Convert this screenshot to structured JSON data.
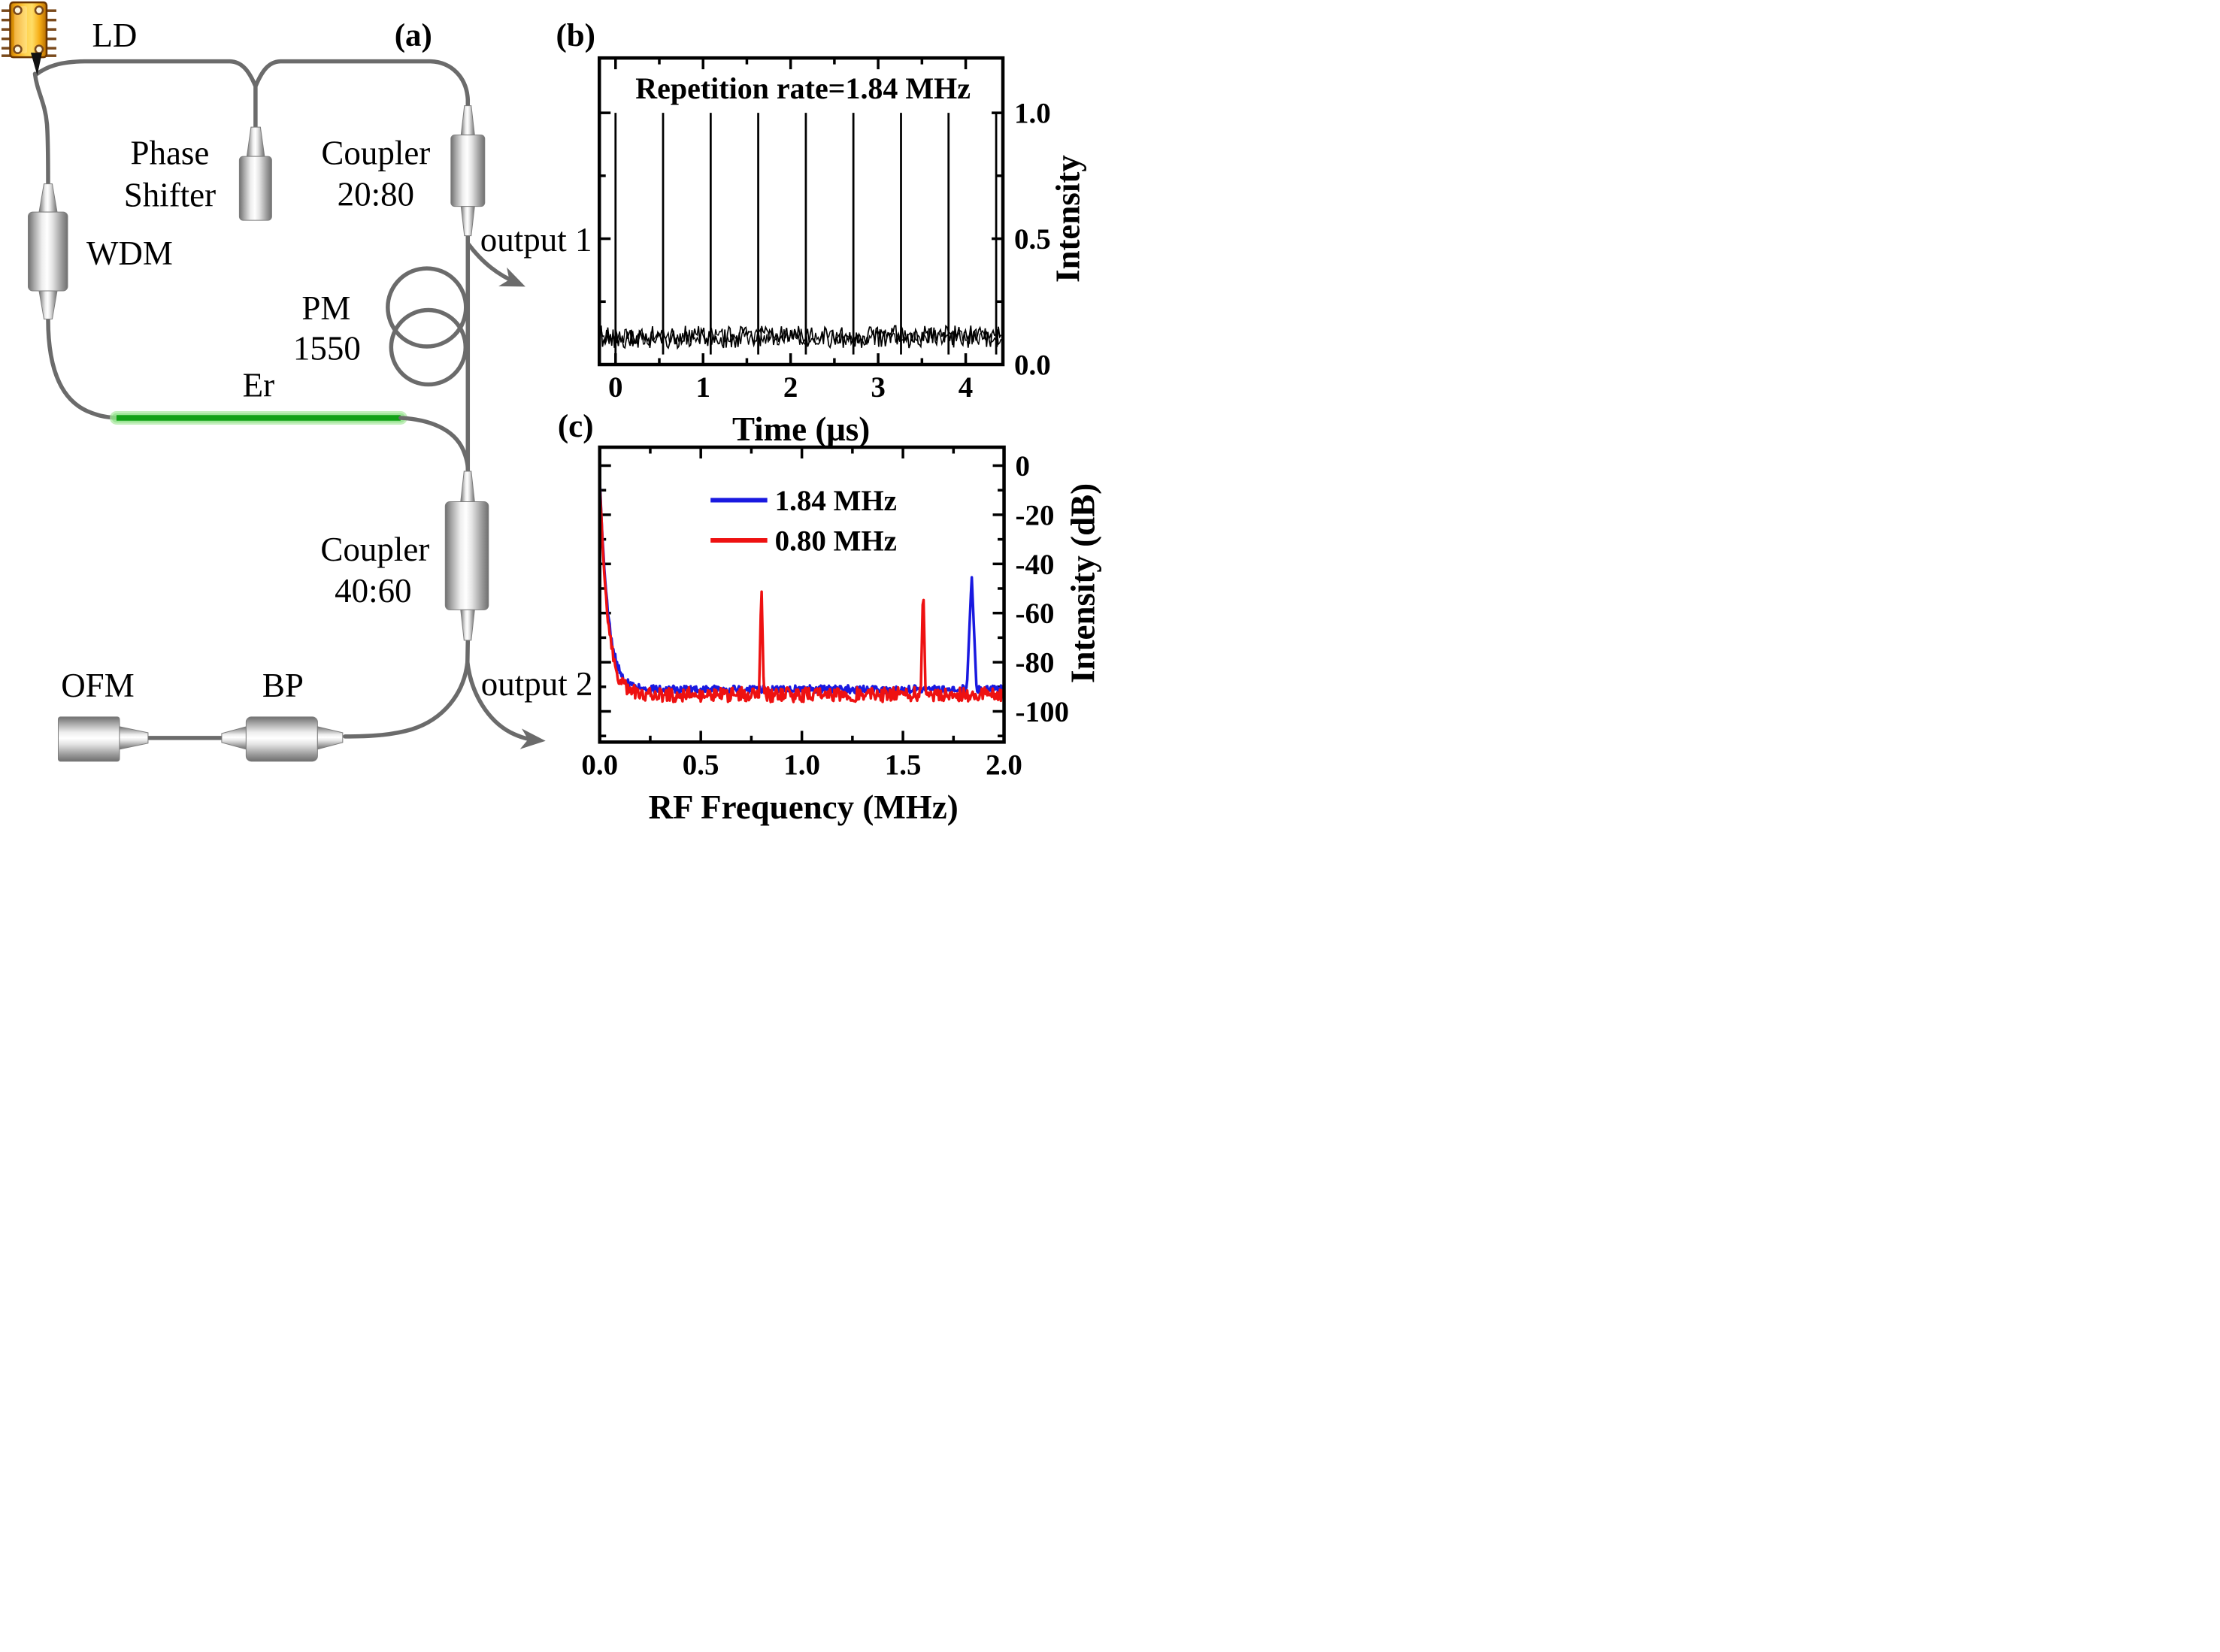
{
  "figure": {
    "panel_a": "(a)",
    "panel_b": "(b)",
    "panel_c": "(c)",
    "background": "#ffffff"
  },
  "diagram": {
    "ld": "LD",
    "phase_shifter": [
      "Phase",
      "Shifter"
    ],
    "coupler_2080": [
      "Coupler",
      "20:80"
    ],
    "wdm": "WDM",
    "output1": "output 1",
    "pm_1550": [
      "PM",
      "1550"
    ],
    "er": "Er",
    "coupler_4060": [
      "Coupler",
      "40:60"
    ],
    "ofm": "OFM",
    "bp": "BP",
    "output2": "output 2",
    "fiber_color": "#6b6b6b",
    "er_fiber_color": "#12a117",
    "er_glow_color": "#a9e8a0",
    "ld_body_color": "#f5b31c",
    "ld_pin_color": "#7a4a1c"
  },
  "chart_data": [
    {
      "panel": "(b)",
      "type": "line",
      "title": "Repetition rate=1.84 MHz",
      "xlabel": "Time (μs)",
      "ylabel": "Intensity",
      "xlim": [
        -0.185,
        4.425
      ],
      "ylim": [
        0,
        1.218
      ],
      "xticks": [
        0,
        1,
        2,
        3,
        4
      ],
      "xtick_labels": [
        "0",
        "1",
        "2",
        "3",
        "4"
      ],
      "xminors": [
        0.5,
        1.5,
        2.5,
        3.5
      ],
      "yticks": [
        0,
        0.5,
        1.0
      ],
      "ytick_labels": [
        "0.0",
        "0.5",
        "1.0"
      ],
      "yminors": [
        0.25,
        0.75
      ],
      "grid": false,
      "legend_position": "none",
      "repetition_rate_MHz": 1.84,
      "pulse_period_us": 0.543,
      "series": [
        {
          "name": "pulse train",
          "color": "#000000",
          "pulse_times_us": [
            0,
            0.543,
            1.087,
            1.63,
            2.174,
            2.717,
            3.261,
            3.804,
            4.348
          ],
          "pulse_amplitude": 1.0,
          "pulse_undershoot": 0.04,
          "noise_baseline": 0.11,
          "noise_halfwidth": 0.045
        }
      ]
    },
    {
      "panel": "(c)",
      "type": "line",
      "title": "",
      "xlabel": "RF Frequency (MHz)",
      "ylabel": "Intensity (dB)",
      "xlim": [
        0,
        2
      ],
      "ylim": [
        -112.5,
        7.5
      ],
      "xticks": [
        0,
        0.5,
        1.0,
        1.5,
        2.0
      ],
      "xtick_labels": [
        "0.0",
        "0.5",
        "1.0",
        "1.5",
        "2.0"
      ],
      "xminors": [
        0.25,
        0.75,
        1.25,
        1.75
      ],
      "yticks": [
        0,
        -20,
        -40,
        -60,
        -80,
        -100
      ],
      "ytick_labels": [
        "0",
        "-20",
        "-40",
        "-60",
        "-80",
        "-100"
      ],
      "yminors": [
        -10,
        -30,
        -50,
        -70,
        -90,
        -110
      ],
      "grid": false,
      "legend_position": "inside-top",
      "series": [
        {
          "name": "1.84 MHz",
          "color": "#1919e0",
          "start_db": -4,
          "noise_floor_db": -91,
          "noise_amp_db": 1.6,
          "decay_mhz": 0.04,
          "peaks": [
            {
              "freq_mhz": 1.84,
              "top_db": -44.5,
              "halfwidth_mhz": 0.024
            }
          ]
        },
        {
          "name": "0.80 MHz",
          "color": "#ee1111",
          "start_db": -4,
          "noise_floor_db": -93.2,
          "noise_amp_db": 3.0,
          "decay_mhz": 0.038,
          "peaks": [
            {
              "freq_mhz": 0.8,
              "top_db": -47.5,
              "halfwidth_mhz": 0.012
            },
            {
              "freq_mhz": 1.6,
              "top_db": -47.0,
              "halfwidth_mhz": 0.012
            }
          ]
        }
      ]
    }
  ]
}
